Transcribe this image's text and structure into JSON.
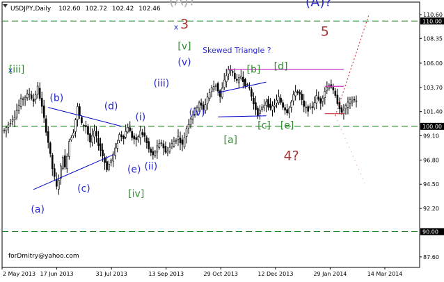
{
  "header": {
    "symbol_text": "USDJPY,Daily",
    "open": "102.60",
    "high": "102.72",
    "low": "102.42",
    "close": "102.46"
  },
  "watermark": "forDmitry@yahoo.com",
  "colors": {
    "background": "#ffffff",
    "frame": "#000000",
    "candle": "#000000",
    "level_line": "#008000",
    "trend_line": "#0000cc",
    "magenta_line": "#cc33cc",
    "red_line": "#cc3333",
    "forecast": "#cc3333",
    "wave_blue": "#2a2ad0",
    "wave_green": "#2e8b2e",
    "wave_red": "#aa3333",
    "wave_gray": "#aaaaaa",
    "badge_bg": "#000000",
    "badge_text": "#ffffff"
  },
  "chart_data": {
    "type": "candlestick",
    "title": "USDJPY,Daily",
    "ylim": [
      86.6,
      111.8
    ],
    "y_ticks": [
      "110.60",
      "108.35",
      "106.00",
      "103.70",
      "101.40",
      "99.10",
      "96.80",
      "94.50",
      "92.20",
      "87.60"
    ],
    "badge_ticks": [
      "110.00",
      "100.00",
      "90.00"
    ],
    "x_ticks": [
      "2 May 2013",
      "17 Jun 2013",
      "31 Jul 2013",
      "13 Sep 2013",
      "29 Oct 2013",
      "12 Dec 2013",
      "29 Jan 2014",
      "14 Mar 2014"
    ],
    "price_path": [
      [
        0,
        99.6
      ],
      [
        5,
        101.0
      ],
      [
        8,
        102.5
      ],
      [
        12,
        103.1
      ],
      [
        14,
        102.4
      ],
      [
        16,
        103.7
      ],
      [
        18,
        101.8
      ],
      [
        21,
        98.5
      ],
      [
        23,
        96.0
      ],
      [
        25,
        94.2
      ],
      [
        26,
        95.0
      ],
      [
        28,
        97.2
      ],
      [
        29,
        96.0
      ],
      [
        31,
        98.6
      ],
      [
        33,
        99.5
      ],
      [
        35,
        101.8
      ],
      [
        37,
        100.2
      ],
      [
        39,
        100.0
      ],
      [
        41,
        98.5
      ],
      [
        43,
        99.5
      ],
      [
        45,
        98.3
      ],
      [
        47,
        97.2
      ],
      [
        49,
        96.0
      ],
      [
        51,
        96.8
      ],
      [
        53,
        97.8
      ],
      [
        55,
        99.2
      ],
      [
        57,
        99.0
      ],
      [
        59,
        100.0
      ],
      [
        61,
        99.0
      ],
      [
        63,
        98.6
      ],
      [
        65,
        99.5
      ],
      [
        67,
        99.0
      ],
      [
        69,
        97.8
      ],
      [
        71,
        97.2
      ],
      [
        73,
        98.0
      ],
      [
        75,
        98.5
      ],
      [
        77,
        97.5
      ],
      [
        79,
        98.0
      ],
      [
        81,
        98.6
      ],
      [
        83,
        99.0
      ],
      [
        85,
        98.2
      ],
      [
        87,
        99.8
      ],
      [
        89,
        100.8
      ],
      [
        91,
        101.5
      ],
      [
        93,
        102.3
      ],
      [
        95,
        101.5
      ],
      [
        97,
        102.8
      ],
      [
        99,
        103.6
      ],
      [
        101,
        104.0
      ],
      [
        103,
        102.8
      ],
      [
        105,
        104.3
      ],
      [
        107,
        105.4
      ],
      [
        109,
        105.1
      ],
      [
        111,
        104.2
      ],
      [
        113,
        104.8
      ],
      [
        115,
        104.0
      ],
      [
        117,
        103.6
      ],
      [
        119,
        102.1
      ],
      [
        121,
        101.2
      ],
      [
        123,
        101.7
      ],
      [
        125,
        102.4
      ],
      [
        127,
        101.6
      ],
      [
        129,
        102.1
      ],
      [
        131,
        102.7
      ],
      [
        133,
        101.9
      ],
      [
        135,
        101.4
      ],
      [
        137,
        102.3
      ],
      [
        139,
        103.4
      ],
      [
        141,
        103.0
      ],
      [
        143,
        101.8
      ],
      [
        145,
        101.6
      ],
      [
        147,
        101.9
      ],
      [
        149,
        102.8
      ],
      [
        151,
        102.3
      ],
      [
        153,
        103.4
      ],
      [
        155,
        104.0
      ],
      [
        156,
        103.8
      ],
      [
        158,
        102.8
      ],
      [
        160,
        101.8
      ],
      [
        161,
        101.2
      ],
      [
        163,
        101.9
      ],
      [
        165,
        102.4
      ],
      [
        168,
        102.5
      ]
    ],
    "levels": [
      {
        "value": 110.0,
        "label": "110.00"
      },
      {
        "value": 100.0,
        "label": "100.00"
      },
      {
        "value": 90.0,
        "label": "90.00"
      }
    ],
    "trend_lines": [
      {
        "color": "trend_line",
        "from": [
          14,
          94.0
        ],
        "to": [
          52,
          97.3
        ]
      },
      {
        "color": "trend_line",
        "from": [
          21,
          101.8
        ],
        "to": [
          56,
          100.0
        ]
      },
      {
        "color": "trend_line",
        "from": [
          102,
          100.9
        ],
        "to": [
          125,
          101.0
        ]
      },
      {
        "color": "trend_line",
        "from": [
          102,
          103.2
        ],
        "to": [
          125,
          104.2
        ]
      }
    ],
    "annotations": [
      {
        "text": "(A)?",
        "x": 85,
        "y": 111.5,
        "color": "wave_gray",
        "size": 19
      },
      {
        "text": "(A)?",
        "x": 150,
        "y": 111.4,
        "color": "wave_blue",
        "size": 19
      },
      {
        "text": "3",
        "x": 86,
        "y": 109.3,
        "color": "wave_red",
        "size": 19
      },
      {
        "text": "x",
        "x": 82,
        "y": 109.2,
        "color": "wave_blue",
        "size": 11
      },
      {
        "text": "5",
        "x": 153,
        "y": 108.6,
        "color": "wave_red",
        "size": 19
      },
      {
        "text": "[v]",
        "x": 86,
        "y": 107.3,
        "color": "wave_green",
        "size": 14
      },
      {
        "text": "(v)",
        "x": 86,
        "y": 105.8,
        "color": "wave_blue",
        "size": 14
      },
      {
        "text": "Skewed Triangle ?",
        "x": 111,
        "y": 107.0,
        "color": "wave_blue",
        "size": 11
      },
      {
        "text": "[iii]",
        "x": 6,
        "y": 105.1,
        "color": "wave_green",
        "size": 14
      },
      {
        "text": "x",
        "x": 3,
        "y": 105.1,
        "color": "wave_blue",
        "size": 11
      },
      {
        "text": "[b]",
        "x": 119,
        "y": 105.1,
        "color": "wave_green",
        "size": 14
      },
      {
        "text": "[d]",
        "x": 132,
        "y": 105.4,
        "color": "wave_green",
        "size": 14
      },
      {
        "text": "(iii)",
        "x": 75,
        "y": 103.8,
        "color": "wave_blue",
        "size": 14
      },
      {
        "text": "(b)",
        "x": 25,
        "y": 102.4,
        "color": "wave_blue",
        "size": 14
      },
      {
        "text": "(d)",
        "x": 51,
        "y": 101.6,
        "color": "wave_blue",
        "size": 14
      },
      {
        "text": "(i)",
        "x": 65,
        "y": 100.6,
        "color": "wave_blue",
        "size": 14
      },
      {
        "text": "(iv)",
        "x": 92,
        "y": 101.0,
        "color": "wave_blue",
        "size": 14
      },
      {
        "text": "[c]",
        "x": 124,
        "y": 99.8,
        "color": "wave_green",
        "size": 14
      },
      {
        "text": "[e]",
        "x": 135,
        "y": 99.8,
        "color": "wave_green",
        "size": 14
      },
      {
        "text": "[a]",
        "x": 108,
        "y": 98.4,
        "color": "wave_green",
        "size": 14
      },
      {
        "text": "4?",
        "x": 137,
        "y": 96.8,
        "color": "wave_red",
        "size": 19
      },
      {
        "text": "(e)",
        "x": 62,
        "y": 95.6,
        "color": "wave_blue",
        "size": 14
      },
      {
        "text": "(ii)",
        "x": 70,
        "y": 95.9,
        "color": "wave_blue",
        "size": 14
      },
      {
        "text": "(c)",
        "x": 38,
        "y": 93.8,
        "color": "wave_blue",
        "size": 14
      },
      {
        "text": "[iv]",
        "x": 63,
        "y": 93.3,
        "color": "wave_green",
        "size": 14
      },
      {
        "text": "(a)",
        "x": 16,
        "y": 91.8,
        "color": "wave_blue",
        "size": 14
      }
    ]
  }
}
